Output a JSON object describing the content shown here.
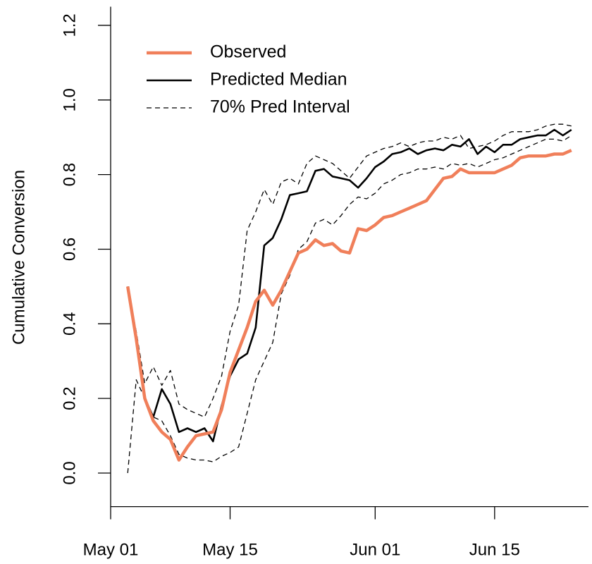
{
  "chart_data": {
    "type": "line",
    "ylabel": "Cumulative Conversion",
    "legend": "topleft",
    "x": [
      "May 03",
      "May 04",
      "May 05",
      "May 06",
      "May 07",
      "May 08",
      "May 09",
      "May 10",
      "May 11",
      "May 12",
      "May 13",
      "May 14",
      "May 15",
      "May 16",
      "May 17",
      "May 18",
      "May 19",
      "May 20",
      "May 21",
      "May 22",
      "May 23",
      "May 24",
      "May 25",
      "May 26",
      "May 27",
      "May 28",
      "May 29",
      "May 30",
      "May 31",
      "Jun 01",
      "Jun 02",
      "Jun 03",
      "Jun 04",
      "Jun 05",
      "Jun 06",
      "Jun 07",
      "Jun 08",
      "Jun 09",
      "Jun 10",
      "Jun 11",
      "Jun 12",
      "Jun 13",
      "Jun 14",
      "Jun 15",
      "Jun 16",
      "Jun 17",
      "Jun 18",
      "Jun 19",
      "Jun 20",
      "Jun 21",
      "Jun 22",
      "Jun 23",
      "Jun 24"
    ],
    "xlim": [
      "May 01",
      "Jun 26"
    ],
    "xticks": [
      "May 01",
      "May 15",
      "Jun 01",
      "Jun 15"
    ],
    "ylim": [
      -0.09,
      1.25
    ],
    "yticks": [
      {
        "value": 0,
        "label": "0.0"
      },
      0.2,
      0.4,
      0.6,
      0.8,
      {
        "value": 1,
        "label": "1.0"
      },
      1.2
    ],
    "series": [
      {
        "name": "Observed",
        "color": "#f07f5a",
        "width": 4.5,
        "values": [
          0.5,
          0.36,
          0.2,
          0.14,
          0.11,
          0.09,
          0.035,
          0.07,
          0.1,
          0.105,
          0.11,
          0.17,
          0.27,
          0.33,
          0.39,
          0.46,
          0.49,
          0.45,
          0.49,
          0.54,
          0.59,
          0.6,
          0.625,
          0.61,
          0.615,
          0.595,
          0.59,
          0.655,
          0.65,
          0.665,
          0.685,
          0.69,
          0.7,
          0.71,
          0.72,
          0.73,
          0.76,
          0.79,
          0.795,
          0.815,
          0.805,
          0.805,
          0.805,
          0.805,
          0.815,
          0.825,
          0.845,
          0.85,
          0.85,
          0.85,
          0.855,
          0.855,
          0.865
        ]
      },
      {
        "name": "Predicted Median",
        "color": "#000000",
        "width": 2.6,
        "values": [
          0.5,
          0.36,
          0.2,
          0.15,
          0.225,
          0.185,
          0.11,
          0.12,
          0.11,
          0.12,
          0.085,
          0.18,
          0.26,
          0.305,
          0.32,
          0.39,
          0.61,
          0.63,
          0.68,
          0.745,
          0.75,
          0.755,
          0.81,
          0.815,
          0.795,
          0.79,
          0.785,
          0.765,
          0.79,
          0.82,
          0.835,
          0.855,
          0.86,
          0.87,
          0.855,
          0.865,
          0.87,
          0.865,
          0.88,
          0.875,
          0.895,
          0.855,
          0.875,
          0.86,
          0.88,
          0.88,
          0.895,
          0.9,
          0.905,
          0.905,
          0.92,
          0.905,
          0.92
        ]
      },
      {
        "name": "70% Pred Interval",
        "color": "#000000",
        "width": 1.3,
        "dashed": true,
        "upper": [
          0.5,
          0.38,
          0.24,
          0.285,
          0.235,
          0.275,
          0.185,
          0.17,
          0.16,
          0.15,
          0.2,
          0.26,
          0.38,
          0.45,
          0.65,
          0.7,
          0.76,
          0.72,
          0.78,
          0.79,
          0.775,
          0.83,
          0.85,
          0.84,
          0.83,
          0.81,
          0.79,
          0.82,
          0.85,
          0.86,
          0.87,
          0.875,
          0.885,
          0.875,
          0.885,
          0.89,
          0.89,
          0.9,
          0.895,
          0.905,
          0.87,
          0.875,
          0.88,
          0.89,
          0.905,
          0.915,
          0.915,
          0.915,
          0.92,
          0.93,
          0.935,
          0.935,
          0.93
        ],
        "lower": [
          0.0,
          0.25,
          0.2,
          0.15,
          0.14,
          0.1,
          0.05,
          0.04,
          0.035,
          0.035,
          0.03,
          0.045,
          0.055,
          0.07,
          0.16,
          0.25,
          0.3,
          0.35,
          0.48,
          0.53,
          0.6,
          0.62,
          0.67,
          0.68,
          0.665,
          0.69,
          0.72,
          0.74,
          0.735,
          0.75,
          0.775,
          0.785,
          0.8,
          0.805,
          0.815,
          0.815,
          0.82,
          0.815,
          0.83,
          0.825,
          0.83,
          0.82,
          0.83,
          0.84,
          0.845,
          0.855,
          0.865,
          0.875,
          0.885,
          0.895,
          0.895,
          0.89,
          0.905
        ]
      }
    ]
  }
}
